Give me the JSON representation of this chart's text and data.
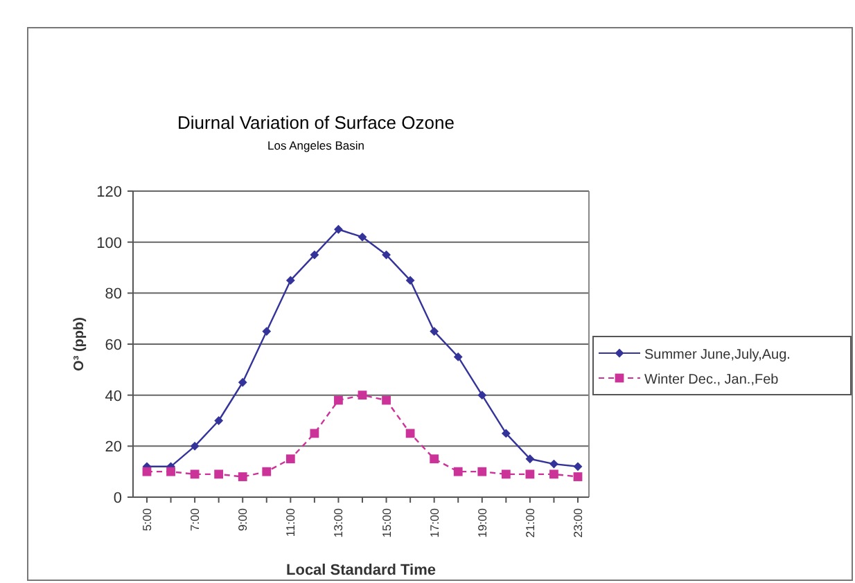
{
  "chart_data": {
    "type": "line",
    "title": "Diurnal Variation of Surface Ozone",
    "subtitle": "Los Angeles Basin",
    "xlabel": "Local Standard Time",
    "ylabel": "O³ (ppb)",
    "categories": [
      "5:00",
      null,
      "7:00",
      null,
      "9:00",
      null,
      "11:00",
      null,
      "13:00",
      null,
      "15:00",
      null,
      "17:00",
      null,
      "19:00",
      null,
      "21:00",
      null,
      "23:00"
    ],
    "series": [
      {
        "name": "Summer June,July,Aug.",
        "color": "#333399",
        "marker": "diamond",
        "line_style": "solid",
        "values": [
          12,
          12,
          20,
          30,
          45,
          65,
          85,
          95,
          105,
          102,
          95,
          85,
          65,
          55,
          40,
          25,
          15,
          13,
          12
        ]
      },
      {
        "name": "Winter Dec., Jan.,Feb",
        "color": "#cc3399",
        "marker": "square",
        "line_style": "dashed",
        "values": [
          10,
          10,
          9,
          9,
          8,
          10,
          15,
          25,
          38,
          40,
          38,
          25,
          15,
          10,
          10,
          9,
          9,
          9,
          8
        ]
      }
    ],
    "ylim": [
      0,
      120
    ],
    "yticks": [
      0,
      20,
      40,
      60,
      80,
      100,
      120
    ],
    "grid": "y",
    "legend": "right"
  }
}
